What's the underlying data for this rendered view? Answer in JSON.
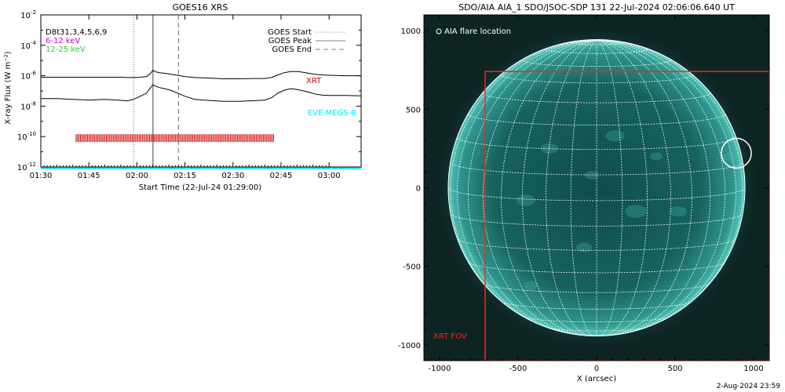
{
  "chart_data": [
    {
      "type": "line",
      "title": "GOES16 XRS",
      "xlabel": "Start Time (22-Jul-24 01:29:00)",
      "ylabel": "X-ray Flux (W m⁻²)",
      "y_scale": "log",
      "ylim_exponent": [
        -12,
        -2
      ],
      "xlim_minutes": [
        90,
        190
      ],
      "x_ticks": [
        {
          "label": "01:30",
          "minutes": 90
        },
        {
          "label": "01:45",
          "minutes": 105
        },
        {
          "label": "02:00",
          "minutes": 120
        },
        {
          "label": "02:15",
          "minutes": 135
        },
        {
          "label": "02:30",
          "minutes": 150
        },
        {
          "label": "02:45",
          "minutes": 165
        },
        {
          "label": "03:00",
          "minutes": 180
        }
      ],
      "y_ticks": [
        {
          "base": "10",
          "exp": "-2",
          "value": -2
        },
        {
          "base": "10",
          "exp": "-4",
          "value": -4
        },
        {
          "base": "10",
          "exp": "-6",
          "value": -6
        },
        {
          "base": "10",
          "exp": "-8",
          "value": -8
        },
        {
          "base": "10",
          "exp": "-10",
          "value": -10
        },
        {
          "base": "10",
          "exp": "-12",
          "value": -12
        }
      ],
      "header_label": "D8t31,3,4,5,6,9",
      "series": [
        {
          "name": "6-12 keV",
          "color": "#000000",
          "x": [
            90,
            95,
            100,
            105,
            110,
            115,
            117,
            119,
            121,
            123,
            124,
            125,
            126,
            127,
            128,
            130,
            132,
            135,
            138,
            142,
            147,
            152,
            157,
            160,
            162,
            164,
            166,
            168,
            170,
            172,
            174,
            176,
            178,
            180,
            185,
            190
          ],
          "y": [
            -6.1,
            -6.1,
            -6.1,
            -6.1,
            -6.1,
            -6.1,
            -6.12,
            -6.12,
            -6.1,
            -6.05,
            -5.9,
            -5.65,
            -5.75,
            -5.8,
            -5.82,
            -5.88,
            -5.95,
            -6.05,
            -6.12,
            -6.15,
            -6.2,
            -6.2,
            -6.18,
            -6.18,
            -6.12,
            -5.95,
            -5.8,
            -5.72,
            -5.72,
            -5.78,
            -5.85,
            -5.92,
            -5.95,
            -5.97,
            -6.0,
            -6.0
          ]
        },
        {
          "name": "12-25 keV",
          "color": "#000000",
          "x": [
            90,
            95,
            100,
            105,
            110,
            115,
            117,
            119,
            121,
            123,
            124,
            125,
            126,
            127,
            128,
            130,
            132,
            135,
            138,
            142,
            147,
            152,
            157,
            160,
            162,
            164,
            166,
            168,
            170,
            172,
            174,
            176,
            178,
            180,
            185,
            190
          ],
          "y": [
            -7.5,
            -7.5,
            -7.55,
            -7.6,
            -7.55,
            -7.62,
            -7.65,
            -7.55,
            -7.35,
            -7.15,
            -6.85,
            -6.6,
            -6.7,
            -6.78,
            -6.82,
            -6.92,
            -7.08,
            -7.35,
            -7.55,
            -7.62,
            -7.68,
            -7.68,
            -7.64,
            -7.6,
            -7.45,
            -7.15,
            -6.95,
            -6.85,
            -6.9,
            -7.0,
            -7.1,
            -7.22,
            -7.28,
            -7.3,
            -7.3,
            -7.32
          ]
        },
        {
          "name": "EVE MEGS-B",
          "color": "#00e5ff",
          "x": [
            90,
            190
          ],
          "y": [
            -12.08,
            -12.08
          ]
        }
      ],
      "legend": [
        {
          "label": "GOES Start",
          "style": "dotted",
          "color": "#808080"
        },
        {
          "label": "GOES Peak",
          "style": "solid",
          "color": "#808080"
        },
        {
          "label": "GOES End",
          "style": "dashed",
          "color": "#808080"
        }
      ],
      "legend_position": "top-right",
      "channel_labels": [
        {
          "text": "6-12 keV",
          "color": "#cc00cc"
        },
        {
          "text": "12-25 keV",
          "color": "#33cc33"
        }
      ],
      "event_lines": [
        {
          "name": "GOES Start",
          "minutes": 119,
          "style": "dotted"
        },
        {
          "name": "GOES Peak",
          "minutes": 125,
          "style": "solid"
        },
        {
          "name": "GOES End",
          "minutes": 133,
          "style": "dashed"
        }
      ],
      "xrt_label": "XRT",
      "xrt_color": "#cc0000",
      "xrt_coverage": {
        "start_minutes": 101,
        "end_minutes": 163,
        "y_exponent": -10.1
      },
      "eve_label": "EVE MEGS-B",
      "eve_color": "#00e5ff"
    },
    {
      "type": "image",
      "title": "SDO/AIA AIA_1 SDO/JSOC-SDP 131 22-Jul-2024 02:06:06.640 UT",
      "xlabel": "X (arcsec)",
      "ylabel": "",
      "xlim": [
        -1100,
        1100
      ],
      "ylim": [
        -1100,
        1100
      ],
      "x_ticks": [
        "-1000",
        "-500",
        "0",
        "500",
        "1000"
      ],
      "x_tick_values": [
        -1000,
        -500,
        0,
        500,
        1000
      ],
      "y_ticks": [
        "1000",
        "500",
        "0",
        "-500",
        "-1000"
      ],
      "y_tick_values": [
        1000,
        500,
        0,
        -500,
        -1000
      ],
      "solar_radius_arcsec": 945,
      "grid_spacing_deg": 10,
      "flare_location": {
        "x": 890,
        "y": 220,
        "radius": 95
      },
      "flare_label": "AIA flare location",
      "xrt_fov": {
        "x0": -710,
        "x1": 1100,
        "y0": -1100,
        "y1": 740
      },
      "xrt_fov_label": "XRT FOV",
      "xrt_fov_color": "#ff2020",
      "disk_color": "#1f7a73"
    }
  ],
  "timestamp": "2-Aug-2024 23:59"
}
